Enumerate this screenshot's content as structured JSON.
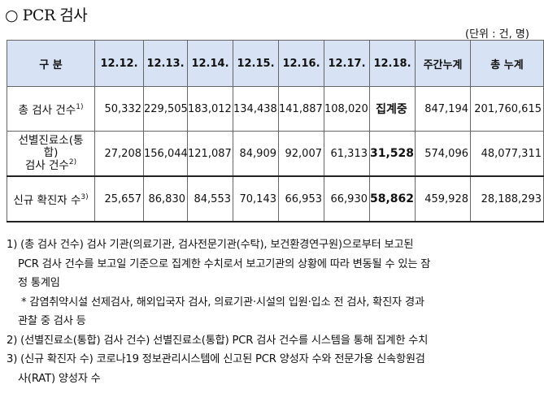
{
  "title": "○ PCR 검사",
  "unit": "(단위 : 건, 명)",
  "table": {
    "headers": [
      "구 분",
      "12.12.",
      "12.13.",
      "12.14.",
      "12.15.",
      "12.16.",
      "12.17.",
      "12.18.",
      "주간누계",
      "총 누계"
    ],
    "rows": [
      {
        "label": "총 검사 건수",
        "label_sup": "1)",
        "values": [
          "50,332",
          "229,505",
          "183,012",
          "134,438",
          "141,887",
          "108,020",
          "집계중",
          "847,194",
          "201,760,615"
        ]
      },
      {
        "label_line1": "선별진료소(통",
        "label_line2": "합)",
        "label_line3": "검사 건수",
        "label_sup": "2)",
        "values": [
          "27,208",
          "156,044",
          "121,087",
          "84,909",
          "92,007",
          "61,313",
          "31,528",
          "574,096",
          "48,077,311"
        ]
      },
      {
        "label": "신규 확진자 수",
        "label_sup": "3)",
        "values": [
          "25,657",
          "86,830",
          "84,553",
          "70,143",
          "66,953",
          "66,930",
          "58,862",
          "459,928",
          "28,188,293"
        ]
      }
    ]
  },
  "notes": {
    "n1_line1": "1) (총 검사 건수) 검사 기관(의료기관, 검사전문기관(수탁), 보건환경연구원)으로부터 보고된",
    "n1_line2": "PCR 검사 건수를 보고일 기준으로 집계한 수치로서 보고기관의 상황에 따라 변동될 수 있는 잠",
    "n1_line3": "정 통계임",
    "star_line1": "* 감염취약시설 선제검사, 해외입국자 검사, 의료기관·시설의 입원·입소 전 검사, 확진자 경과",
    "star_line2": "관찰 중 검사 등",
    "n2": "2) (선별진료소(통합) 검사 건수) 선별진료소(통합) PCR 검사 건수를 시스템을 통해 집계한 수치",
    "n3_line1": "3) (신규 확진자 수) 코로나19 정보관리시스템에 신고된 PCR 양성자 수와 전문가용 신속항원검",
    "n3_line2": "사(RAT) 양성자 수"
  }
}
